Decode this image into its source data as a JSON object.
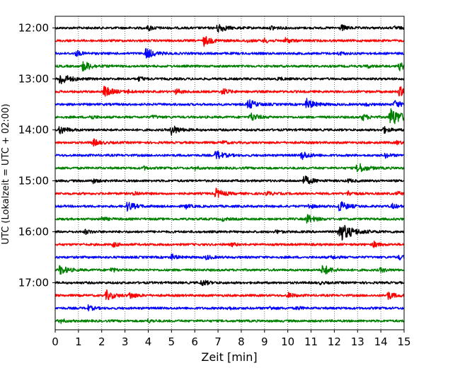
{
  "chart_data": {
    "type": "line",
    "xlabel": "Zeit  [min]",
    "ylabel": "UTC (Lokalzeit = UTC + 02:00)",
    "xlim": [
      0,
      15
    ],
    "x_ticks": [
      0,
      1,
      2,
      3,
      4,
      5,
      6,
      7,
      8,
      9,
      10,
      11,
      12,
      13,
      14,
      15
    ],
    "y_tick_labels": [
      "12:00",
      "13:00",
      "14:00",
      "15:00",
      "16:00",
      "17:00"
    ],
    "grid": "vertical dotted lines at each minute",
    "trace_interval_minutes": 15,
    "trace_start": "12:00",
    "trace_count": 24,
    "color_cycle": [
      "#000000",
      "#ff0000",
      "#0000ff",
      "#008000"
    ],
    "traces": [
      {
        "start": "12:00",
        "color": "#000000",
        "bursts": [
          [
            4.0,
            0.5
          ],
          [
            7.0,
            0.9
          ],
          [
            9.3,
            0.4
          ],
          [
            12.3,
            0.5
          ],
          [
            14.6,
            0.3
          ]
        ]
      },
      {
        "start": "12:15",
        "color": "#ff0000",
        "bursts": [
          [
            6.4,
            0.9
          ],
          [
            8.2,
            0.3
          ],
          [
            9.0,
            0.4
          ],
          [
            9.9,
            0.5
          ]
        ]
      },
      {
        "start": "12:30",
        "color": "#0000ff",
        "bursts": [
          [
            0.9,
            0.5
          ],
          [
            3.9,
            1.0
          ],
          [
            12.2,
            0.3
          ]
        ]
      },
      {
        "start": "12:45",
        "color": "#008000",
        "bursts": [
          [
            1.2,
            1.0
          ],
          [
            13.4,
            0.3
          ],
          [
            14.8,
            0.7
          ]
        ]
      },
      {
        "start": "13:00",
        "color": "#000000",
        "bursts": [
          [
            0.2,
            1.2
          ],
          [
            3.6,
            0.4
          ],
          [
            9.6,
            0.3
          ]
        ]
      },
      {
        "start": "13:15",
        "color": "#ff0000",
        "bursts": [
          [
            2.1,
            1.0
          ],
          [
            3.1,
            0.3
          ],
          [
            5.2,
            0.5
          ],
          [
            7.2,
            0.6
          ],
          [
            14.8,
            0.9
          ]
        ]
      },
      {
        "start": "13:30",
        "color": "#0000ff",
        "bursts": [
          [
            8.3,
            0.9
          ],
          [
            10.8,
            1.0
          ],
          [
            13.3,
            0.3
          ],
          [
            14.6,
            0.7
          ]
        ]
      },
      {
        "start": "13:45",
        "color": "#008000",
        "bursts": [
          [
            1.5,
            0.4
          ],
          [
            4.2,
            0.3
          ],
          [
            8.4,
            0.8
          ],
          [
            13.2,
            0.6
          ],
          [
            14.4,
            1.8
          ]
        ]
      },
      {
        "start": "14:00",
        "color": "#000000",
        "bursts": [
          [
            0.2,
            0.8
          ],
          [
            5.0,
            0.9
          ],
          [
            14.1,
            0.6
          ]
        ]
      },
      {
        "start": "14:15",
        "color": "#ff0000",
        "bursts": [
          [
            1.6,
            0.7
          ],
          [
            7.2,
            0.3
          ],
          [
            14.7,
            0.3
          ]
        ]
      },
      {
        "start": "14:30",
        "color": "#0000ff",
        "bursts": [
          [
            6.9,
            0.9
          ],
          [
            10.6,
            0.8
          ],
          [
            14.2,
            0.4
          ]
        ]
      },
      {
        "start": "14:45",
        "color": "#008000",
        "bursts": [
          [
            3.8,
            0.3
          ],
          [
            6.0,
            0.3
          ],
          [
            13.0,
            1.0
          ]
        ]
      },
      {
        "start": "15:00",
        "color": "#000000",
        "bursts": [
          [
            1.6,
            0.4
          ],
          [
            10.7,
            0.9
          ],
          [
            12.6,
            0.3
          ]
        ]
      },
      {
        "start": "15:15",
        "color": "#ff0000",
        "bursts": [
          [
            3.4,
            0.4
          ],
          [
            6.9,
            0.9
          ],
          [
            9.1,
            0.4
          ],
          [
            12.6,
            0.4
          ],
          [
            14.7,
            0.3
          ]
        ]
      },
      {
        "start": "15:30",
        "color": "#0000ff",
        "bursts": [
          [
            3.1,
            0.9
          ],
          [
            5.6,
            0.4
          ],
          [
            10.9,
            0.4
          ],
          [
            12.2,
            1.0
          ],
          [
            14.5,
            0.4
          ]
        ]
      },
      {
        "start": "15:45",
        "color": "#008000",
        "bursts": [
          [
            2.0,
            0.4
          ],
          [
            7.2,
            0.3
          ],
          [
            10.8,
            0.9
          ]
        ]
      },
      {
        "start": "16:00",
        "color": "#000000",
        "bursts": [
          [
            1.3,
            0.4
          ],
          [
            9.5,
            0.3
          ],
          [
            12.2,
            1.9
          ]
        ]
      },
      {
        "start": "16:15",
        "color": "#ff0000",
        "bursts": [
          [
            2.5,
            0.4
          ],
          [
            7.6,
            0.3
          ],
          [
            13.7,
            0.5
          ]
        ]
      },
      {
        "start": "16:30",
        "color": "#0000ff",
        "bursts": [
          [
            5.0,
            0.5
          ],
          [
            6.5,
            0.4
          ],
          [
            11.9,
            0.3
          ],
          [
            14.8,
            0.4
          ]
        ]
      },
      {
        "start": "16:45",
        "color": "#008000",
        "bursts": [
          [
            0.2,
            0.9
          ],
          [
            2.4,
            0.4
          ],
          [
            11.5,
            1.0
          ],
          [
            14.0,
            0.4
          ]
        ]
      },
      {
        "start": "17:00",
        "color": "#000000",
        "bursts": [
          [
            6.3,
            0.6
          ],
          [
            11.4,
            0.2
          ]
        ]
      },
      {
        "start": "17:15",
        "color": "#ff0000",
        "bursts": [
          [
            2.2,
            0.9
          ],
          [
            3.2,
            0.6
          ],
          [
            10.0,
            0.5
          ],
          [
            14.3,
            0.7
          ]
        ]
      },
      {
        "start": "17:30",
        "color": "#0000ff",
        "bursts": [
          [
            1.4,
            0.5
          ],
          [
            7.4,
            0.3
          ],
          [
            9.2,
            0.3
          ],
          [
            10.4,
            0.3
          ]
        ]
      },
      {
        "start": "17:45",
        "color": "#008000",
        "bursts": [
          [
            0.2,
            0.4
          ],
          [
            4.0,
            0.3
          ]
        ]
      }
    ]
  }
}
